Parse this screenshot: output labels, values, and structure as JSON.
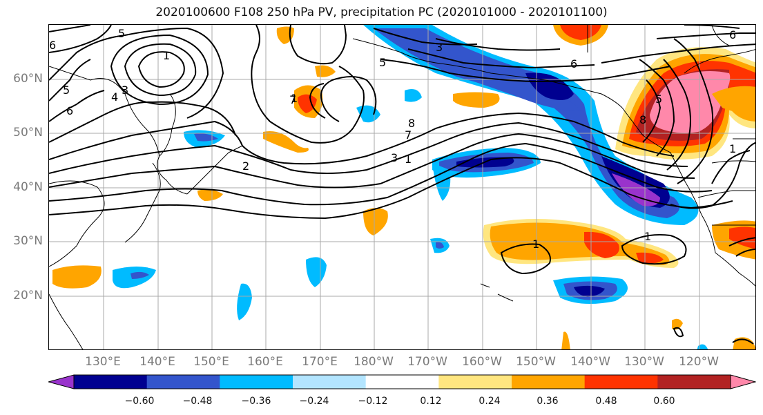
{
  "title": "2020100600 F108 250 hPa PV, precipitation PC (2020101000 - 2020101100)",
  "latitude_labels": [
    "60°N",
    "50°N",
    "40°N",
    "30°N",
    "20°N"
  ],
  "longitude_labels": [
    "130°E",
    "140°E",
    "150°E",
    "160°E",
    "170°E",
    "180°W",
    "170°W",
    "160°W",
    "150°W",
    "140°W",
    "130°W",
    "120°W"
  ],
  "colorbar": {
    "colors": [
      "#9933cc",
      "#000090",
      "#3355cc",
      "#00bbff",
      "#b3e5ff",
      "#ffffff",
      "#ffe680",
      "#ffa500",
      "#ff3300",
      "#b22222",
      "#ff88aa"
    ],
    "ticks": [
      "−0.60",
      "−0.48",
      "−0.36",
      "−0.24",
      "−0.12",
      "0.12",
      "0.24",
      "0.36",
      "0.48",
      "0.60"
    ]
  },
  "contour_labels": [
    "1",
    "1",
    "1",
    "1",
    "1",
    "1",
    "2",
    "3",
    "3",
    "3",
    "4",
    "5",
    "5",
    "5",
    "5",
    "6",
    "6",
    "6",
    "6",
    "7",
    "7",
    "8",
    "8"
  ]
}
